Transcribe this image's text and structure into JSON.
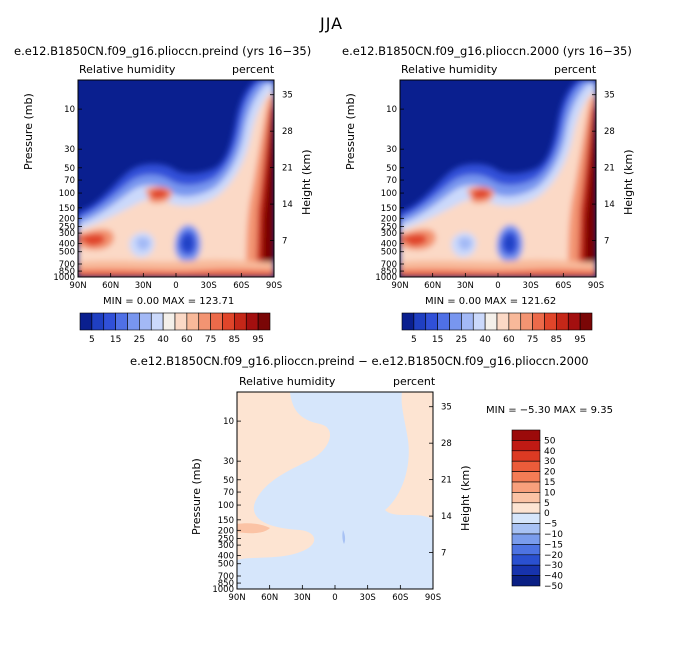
{
  "figure_title": "JJA",
  "panels": [
    {
      "title": "e.e12.B1850CN.f09_g16.plioccn.preind (yrs 16−35)",
      "left_label": "Relative humidity",
      "right_label": "percent",
      "minmax": "MIN =    0.00   MAX = 123.71"
    },
    {
      "title": "e.e12.B1850CN.f09_g16.plioccn.2000 (yrs 16−35)",
      "left_label": "Relative humidity",
      "right_label": "percent",
      "minmax": "MIN =    0.00   MAX = 121.62"
    },
    {
      "title": "e.e12.B1850CN.f09_g16.plioccn.preind − e.e12.B1850CN.f09_g16.plioccn.2000",
      "left_label": "Relative humidity",
      "right_label": "percent",
      "minmax": "MIN =   −5.30    MAX =    9.35"
    }
  ],
  "chart_data": {
    "type": "heatmap",
    "ylabel": "Pressure (mb)",
    "ylabel_right": "Height (km)",
    "x_ticks": [
      "90N",
      "60N",
      "30N",
      "0",
      "30S",
      "60S",
      "90S"
    ],
    "pressure_ticks": [
      10,
      30,
      50,
      70,
      100,
      150,
      200,
      250,
      300,
      400,
      500,
      700,
      850,
      1000
    ],
    "pressure_tick_labels": [
      "10",
      "30",
      "50",
      "70",
      "100",
      "150",
      "200",
      "250",
      "300",
      "400",
      "500",
      "700",
      "850",
      "1000"
    ],
    "height_ticks": [
      35,
      28,
      21,
      14,
      7
    ],
    "height_tick_labels": [
      "35",
      "28",
      "21",
      "14",
      "7"
    ],
    "abs_colorbar": {
      "labels": [
        "5",
        "15",
        "25",
        "40",
        "60",
        "75",
        "85",
        "95"
      ],
      "colors": [
        "#0a1f8f",
        "#1f3fc2",
        "#3050d8",
        "#4f70e6",
        "#7896ef",
        "#a3b9f6",
        "#cbd9fb",
        "#f4f0ea",
        "#fbd9c6",
        "#f8b99a",
        "#f39472",
        "#ec6a4a",
        "#e0452a",
        "#c52718",
        "#a30f0f",
        "#7a0606"
      ]
    },
    "diff_colorbar": {
      "labels": [
        "50",
        "40",
        "30",
        "20",
        "15",
        "10",
        "5",
        "0",
        "−5",
        "−10",
        "−15",
        "−20",
        "−30",
        "−40",
        "−50"
      ],
      "colors": [
        "#9b0a0a",
        "#c01a14",
        "#dc3a23",
        "#eb5c3a",
        "#f47c55",
        "#f9a07c",
        "#fbc3a5",
        "#fde4d2",
        "#d6e6fb",
        "#a8c2f4",
        "#7a9cec",
        "#4d73e2",
        "#2a50d0",
        "#1733ad",
        "#0a1f84"
      ]
    }
  }
}
